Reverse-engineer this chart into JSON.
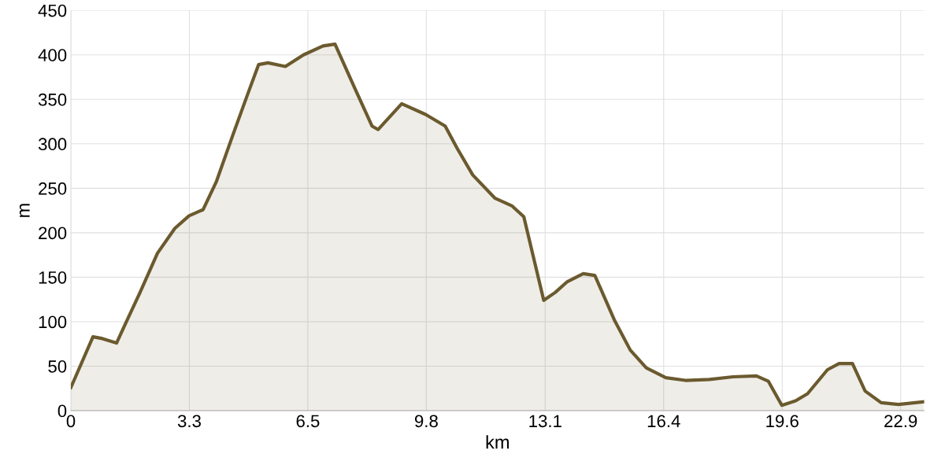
{
  "chart_data": {
    "type": "area",
    "xlabel": "km",
    "ylabel": "m",
    "x": [
      0,
      0.61,
      0.87,
      1.26,
      1.52,
      1.91,
      2.39,
      2.87,
      3.26,
      3.65,
      4.02,
      4.48,
      4.89,
      5.18,
      5.44,
      5.92,
      6.42,
      6.96,
      7.29,
      7.83,
      8.31,
      8.48,
      9.13,
      9.79,
      10.33,
      10.66,
      11.09,
      11.7,
      12.18,
      12.5,
      13.05,
      13.37,
      13.7,
      14.14,
      14.46,
      15.01,
      15.44,
      15.88,
      16.42,
      16.96,
      17.62,
      18.27,
      18.92,
      19.25,
      19.62,
      20.0,
      20.33,
      20.88,
      21.2,
      21.57,
      21.92,
      22.36,
      22.84,
      23.53
    ],
    "series": [
      {
        "color": "#6b5a2e",
        "values": [
          26,
          83,
          81,
          76,
          99,
          133,
          177,
          205,
          219,
          226,
          258,
          311,
          357,
          389,
          391,
          387,
          400,
          410,
          412,
          363,
          320,
          316,
          345,
          333,
          320,
          295,
          265,
          239,
          230,
          218,
          124,
          133,
          145,
          154,
          152,
          101,
          68,
          48,
          37,
          34,
          35,
          38,
          39,
          33,
          6,
          11,
          19,
          46,
          53,
          53,
          22,
          9,
          7,
          10
        ]
      }
    ],
    "xlim": [
      0,
      23.55
    ],
    "ylim": [
      0,
      450
    ],
    "xticks": [
      0,
      {
        "value": 3.27,
        "label": "3.3"
      },
      {
        "value": 6.54,
        "label": "6.5"
      },
      {
        "value": 9.81,
        "label": "9.8"
      },
      {
        "value": 13.09,
        "label": "13.1"
      },
      {
        "value": 16.36,
        "label": "16.4"
      },
      {
        "value": 19.63,
        "label": "19.6"
      },
      {
        "value": 22.9,
        "label": "22.9"
      }
    ],
    "yticks": [
      0,
      50,
      100,
      150,
      200,
      250,
      300,
      350,
      400,
      450
    ],
    "grid": true
  }
}
